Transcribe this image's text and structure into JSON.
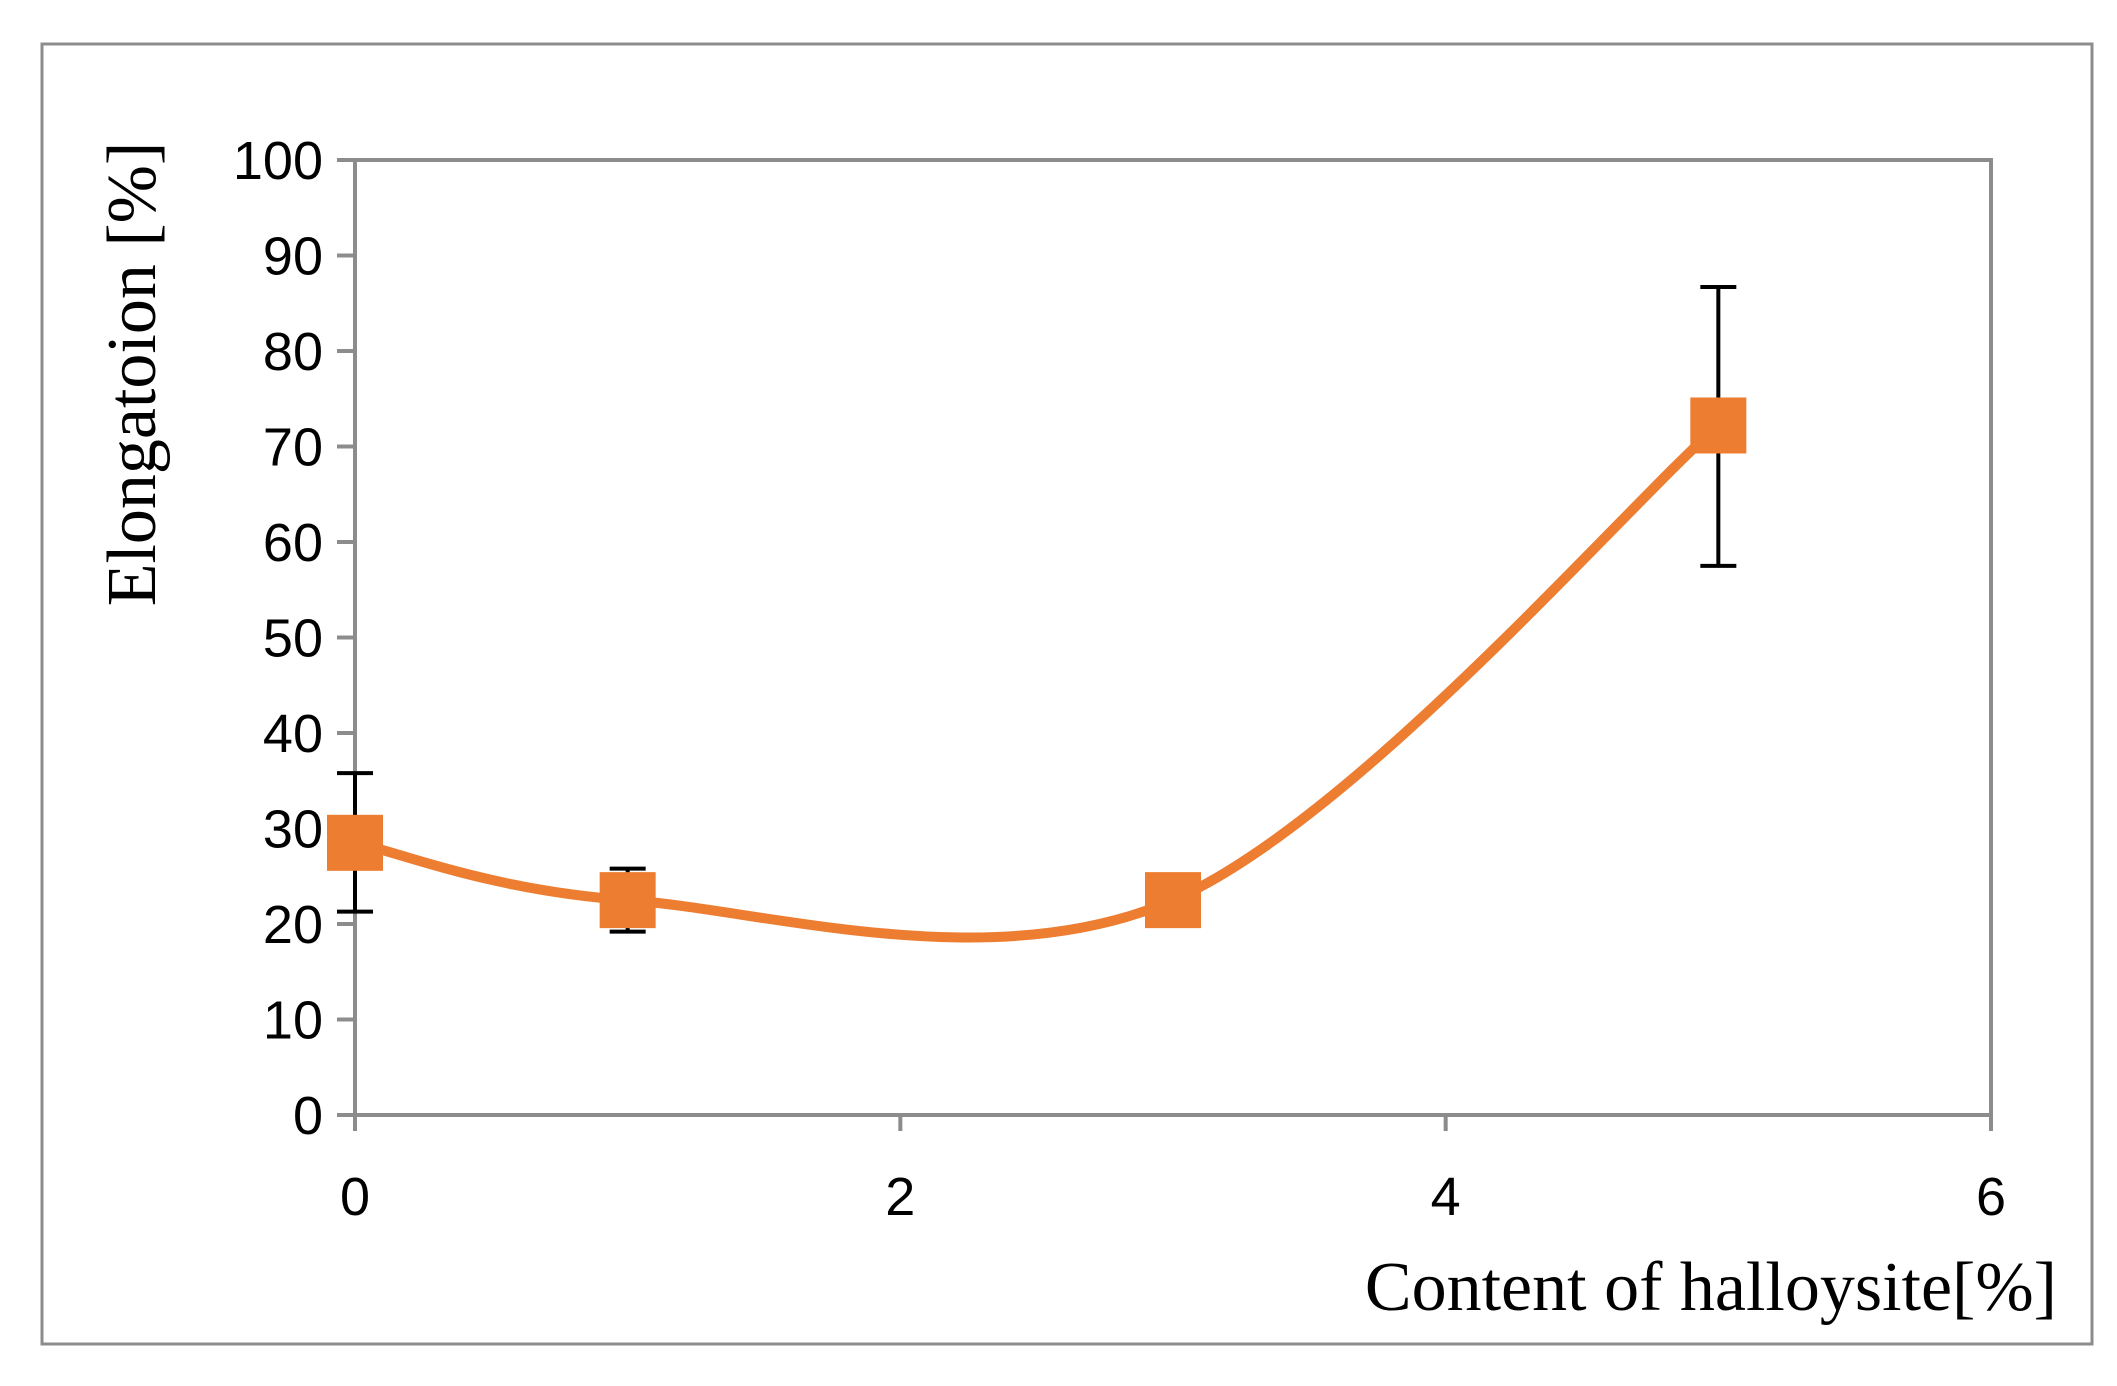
{
  "chart_data": {
    "type": "line",
    "title": "",
    "xlabel": "Content of halloysite[%]",
    "ylabel": "Elongatoion [%]",
    "xlim": [
      0,
      6
    ],
    "ylim": [
      0,
      100
    ],
    "x_ticks": [
      "0",
      "2",
      "4",
      "6"
    ],
    "y_ticks": [
      "0",
      "10",
      "20",
      "30",
      "40",
      "50",
      "60",
      "70",
      "80",
      "90",
      "100"
    ],
    "grid": false,
    "legend": "none",
    "smooth": true,
    "series": [
      {
        "x": [
          0,
          1,
          3,
          5
        ],
        "y": [
          28.5,
          22.5,
          22.5,
          72.2
        ],
        "error_low": [
          21.3,
          19.2,
          22.5,
          57.5
        ],
        "error_high": [
          35.8,
          25.8,
          22.5,
          86.7
        ],
        "color": "#ED7D31",
        "marker": "square"
      }
    ]
  }
}
